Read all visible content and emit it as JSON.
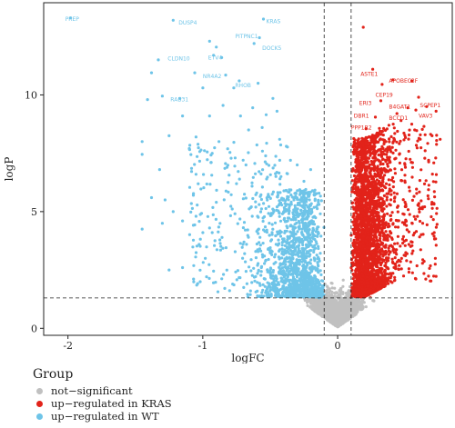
{
  "chart_data": {
    "type": "scatter",
    "title": "",
    "xlabel": "logFC",
    "ylabel": "logP",
    "xlim": [
      -2.18,
      0.85
    ],
    "ylim": [
      -0.3,
      13.95
    ],
    "x_ticks": [
      -2,
      -1,
      0
    ],
    "x_tick_labels": [
      "-2",
      "-1",
      "0"
    ],
    "y_ticks": [
      0,
      5,
      10
    ],
    "y_tick_labels": [
      "0",
      "5",
      "10"
    ],
    "thresholds": {
      "logFC": [
        -0.1,
        0.1
      ],
      "logP": 1.3
    },
    "grid": false,
    "legend": {
      "title": "Group",
      "placement": "bottom-left",
      "entries": [
        {
          "label": "not−significant",
          "color": "#c0c0c0"
        },
        {
          "label": "up−regulated in KRAS",
          "color": "#e2231a"
        },
        {
          "label": "up−regulated in WT",
          "color": "#6ec4e8"
        }
      ]
    },
    "series": [
      {
        "name": "not−significant",
        "color": "#c0c0c0"
      },
      {
        "name": "up−regulated in KRAS",
        "color": "#e2231a"
      },
      {
        "name": "up−regulated in WT",
        "color": "#6ec4e8"
      }
    ],
    "wt_points": [
      [
        -1.98,
        13.3
      ],
      [
        -1.22,
        13.2
      ],
      [
        -0.55,
        13.25
      ],
      [
        -0.58,
        12.45
      ],
      [
        -0.62,
        12.2
      ],
      [
        -0.95,
        12.3
      ],
      [
        -0.92,
        11.7
      ],
      [
        -0.9,
        12.05
      ],
      [
        -0.86,
        11.6
      ],
      [
        -1.33,
        11.5
      ],
      [
        -1.06,
        10.95
      ],
      [
        -1.38,
        10.95
      ],
      [
        -0.83,
        10.85
      ],
      [
        -0.59,
        10.5
      ],
      [
        -0.77,
        10.3
      ],
      [
        -0.73,
        10.6
      ],
      [
        -1.0,
        10.3
      ],
      [
        -1.3,
        9.95
      ],
      [
        -1.17,
        9.85
      ],
      [
        -1.41,
        9.8
      ],
      [
        -0.85,
        9.55
      ],
      [
        -0.63,
        9.45
      ],
      [
        -1.15,
        9.1
      ],
      [
        -0.95,
        9.1
      ],
      [
        -0.72,
        9.1
      ],
      [
        -0.53,
        9.15
      ],
      [
        -0.48,
        9.85
      ],
      [
        -0.45,
        9.3
      ],
      [
        -1.45,
        8.0
      ],
      [
        -1.25,
        8.25
      ],
      [
        -1.05,
        8.2
      ],
      [
        -0.88,
        8.0
      ],
      [
        -0.66,
        8.5
      ],
      [
        -0.56,
        8.6
      ],
      [
        -1.45,
        7.45
      ],
      [
        -1.1,
        7.7
      ],
      [
        -0.93,
        7.5
      ],
      [
        -0.76,
        7.3
      ],
      [
        -0.43,
        8.1
      ],
      [
        -0.38,
        7.8
      ],
      [
        -1.32,
        6.8
      ],
      [
        -1.05,
        6.6
      ],
      [
        -0.82,
        6.9
      ],
      [
        -0.68,
        7.0
      ],
      [
        -0.35,
        7.2
      ],
      [
        -1.38,
        5.6
      ],
      [
        -1.28,
        5.5
      ],
      [
        -1.15,
        4.6
      ],
      [
        -1.05,
        4.8
      ],
      [
        -1.45,
        4.25
      ],
      [
        -1.3,
        4.5
      ],
      [
        -1.0,
        4.1
      ],
      [
        -0.95,
        4.3
      ],
      [
        -1.25,
        2.5
      ],
      [
        -1.15,
        2.6
      ],
      [
        -0.92,
        2.45
      ],
      [
        -0.42,
        6.5
      ],
      [
        -0.3,
        7.0
      ],
      [
        -0.25,
        6.3
      ],
      [
        -0.2,
        6.8
      ],
      [
        -1.22,
        5.0
      ],
      [
        -0.9,
        5.4
      ],
      [
        -0.6,
        5.8
      ],
      [
        -0.75,
        6.2
      ],
      [
        -1.07,
        5.7
      ]
    ],
    "kras_points": [
      [
        0.19,
        12.9
      ],
      [
        0.26,
        11.1
      ],
      [
        0.41,
        10.65
      ],
      [
        0.33,
        10.45
      ],
      [
        0.55,
        10.6
      ],
      [
        0.6,
        9.9
      ],
      [
        0.32,
        9.75
      ],
      [
        0.52,
        9.45
      ],
      [
        0.66,
        9.5
      ],
      [
        0.44,
        9.2
      ],
      [
        0.58,
        9.35
      ],
      [
        0.73,
        9.3
      ],
      [
        0.28,
        9.05
      ],
      [
        0.55,
        8.75
      ],
      [
        0.47,
        8.9
      ],
      [
        0.38,
        8.7
      ],
      [
        0.21,
        8.55
      ],
      [
        0.64,
        8.65
      ],
      [
        0.7,
        8.25
      ],
      [
        0.3,
        8.25
      ],
      [
        0.42,
        8.1
      ],
      [
        0.76,
        8.1
      ]
    ],
    "labels": [
      {
        "text": "PREP",
        "x": -2.02,
        "y": 13.25,
        "group": "WT"
      },
      {
        "text": "DUSP4",
        "x": -1.18,
        "y": 13.1,
        "group": "WT"
      },
      {
        "text": "KRAS",
        "x": -0.53,
        "y": 13.15,
        "group": "WT"
      },
      {
        "text": "PITPNC1",
        "x": -0.76,
        "y": 12.5,
        "group": "WT"
      },
      {
        "text": "DOCK5",
        "x": -0.56,
        "y": 12.0,
        "group": "WT"
      },
      {
        "text": "CLDN10",
        "x": -1.26,
        "y": 11.55,
        "group": "WT"
      },
      {
        "text": "ETV4",
        "x": -0.96,
        "y": 11.6,
        "group": "WT"
      },
      {
        "text": "NR4A2",
        "x": -1.0,
        "y": 10.8,
        "group": "WT"
      },
      {
        "text": "RHOB",
        "x": -0.76,
        "y": 10.4,
        "group": "WT"
      },
      {
        "text": "RAB31",
        "x": -1.24,
        "y": 9.8,
        "group": "WT"
      },
      {
        "text": "ASTE1",
        "x": 0.17,
        "y": 10.9,
        "group": "KRAS"
      },
      {
        "text": "APOBEC3F",
        "x": 0.38,
        "y": 10.6,
        "group": "KRAS"
      },
      {
        "text": "CEP19",
        "x": 0.28,
        "y": 10.0,
        "group": "KRAS"
      },
      {
        "text": "ERI3",
        "x": 0.16,
        "y": 9.65,
        "group": "KRAS"
      },
      {
        "text": "B4GAT1",
        "x": 0.38,
        "y": 9.5,
        "group": "KRAS"
      },
      {
        "text": "SCPEP1",
        "x": 0.61,
        "y": 9.55,
        "group": "KRAS"
      },
      {
        "text": "DBR1",
        "x": 0.12,
        "y": 9.1,
        "group": "KRAS"
      },
      {
        "text": "BCCD1",
        "x": 0.38,
        "y": 9.0,
        "group": "KRAS"
      },
      {
        "text": "VAV3",
        "x": 0.6,
        "y": 9.1,
        "group": "KRAS"
      },
      {
        "text": "PPP1R2",
        "x": 0.1,
        "y": 8.6,
        "group": "KRAS"
      }
    ]
  }
}
